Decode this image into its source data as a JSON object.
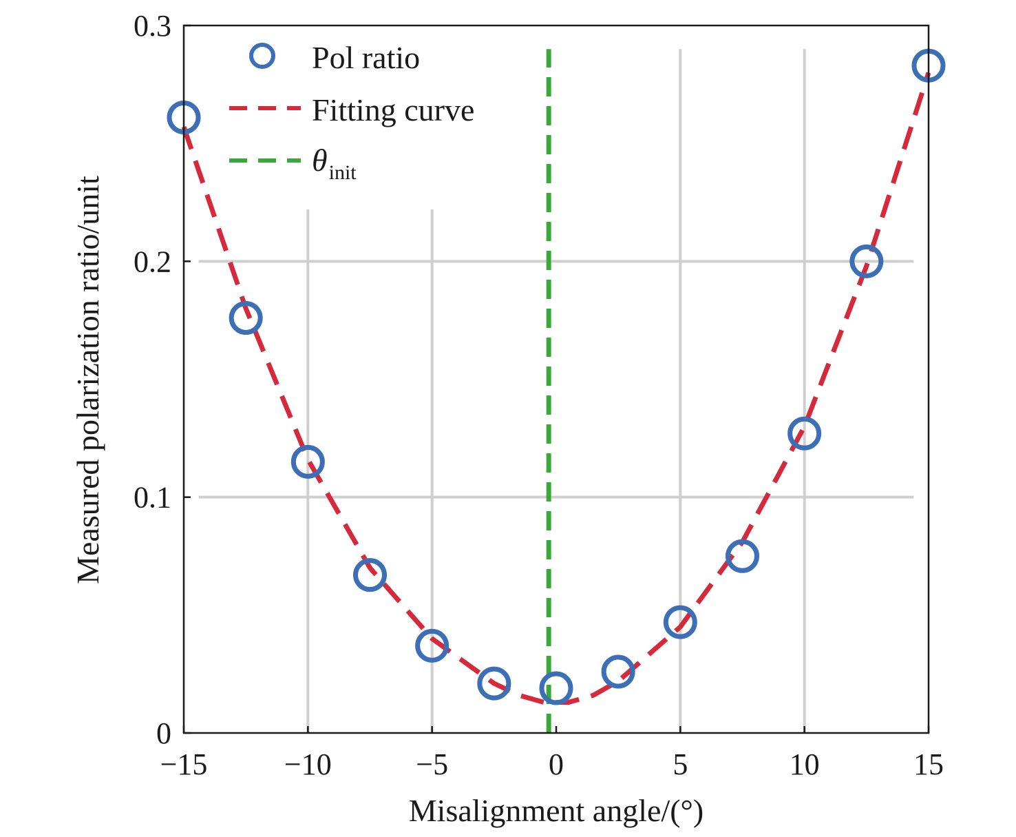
{
  "chart_data": {
    "type": "scatter",
    "xlabel": "Misalignment angle/(°)",
    "ylabel": "Measured polarization ratio/unit",
    "xlim": [
      -15,
      15
    ],
    "ylim": [
      0,
      0.3
    ],
    "xticks": [
      -15,
      -10,
      -5,
      0,
      5,
      10,
      15
    ],
    "yticks": [
      0,
      0.1,
      0.2,
      0.3
    ],
    "x_tick_labels": [
      "−15",
      "−10",
      "−5",
      "0",
      "5",
      "10",
      "15"
    ],
    "y_tick_labels": [
      "0",
      "0.1",
      "0.2",
      "0.3"
    ],
    "grid": true,
    "legend_position": "top-left",
    "series": [
      {
        "name": "Pol ratio",
        "kind": "markers",
        "color": "#3d6fb6",
        "x": [
          -15,
          -12.5,
          -10,
          -7.5,
          -5,
          -2.5,
          0,
          2.5,
          5,
          7.5,
          10,
          12.5,
          15
        ],
        "y": [
          0.261,
          0.176,
          0.115,
          0.067,
          0.037,
          0.021,
          0.019,
          0.026,
          0.047,
          0.075,
          0.127,
          0.2,
          0.283
        ]
      },
      {
        "name": "Fitting curve",
        "kind": "dashed-line",
        "color": "#d42a3c",
        "x": [
          -15,
          -12.5,
          -10,
          -7.5,
          -5,
          -2.5,
          -1.5,
          -0.5,
          0,
          0.5,
          1.5,
          2.5,
          5,
          7.5,
          10,
          12.5,
          15
        ],
        "y": [
          0.257,
          0.18,
          0.116,
          0.07,
          0.04,
          0.021,
          0.016,
          0.013,
          0.013,
          0.013,
          0.016,
          0.022,
          0.045,
          0.081,
          0.13,
          0.198,
          0.28
        ]
      },
      {
        "name": "θ",
        "name_subscript": "init",
        "kind": "vertical-dashed-line",
        "color": "#3aa83a",
        "x": [
          -0.3,
          -0.3
        ],
        "y": [
          0,
          0.29
        ]
      }
    ]
  }
}
